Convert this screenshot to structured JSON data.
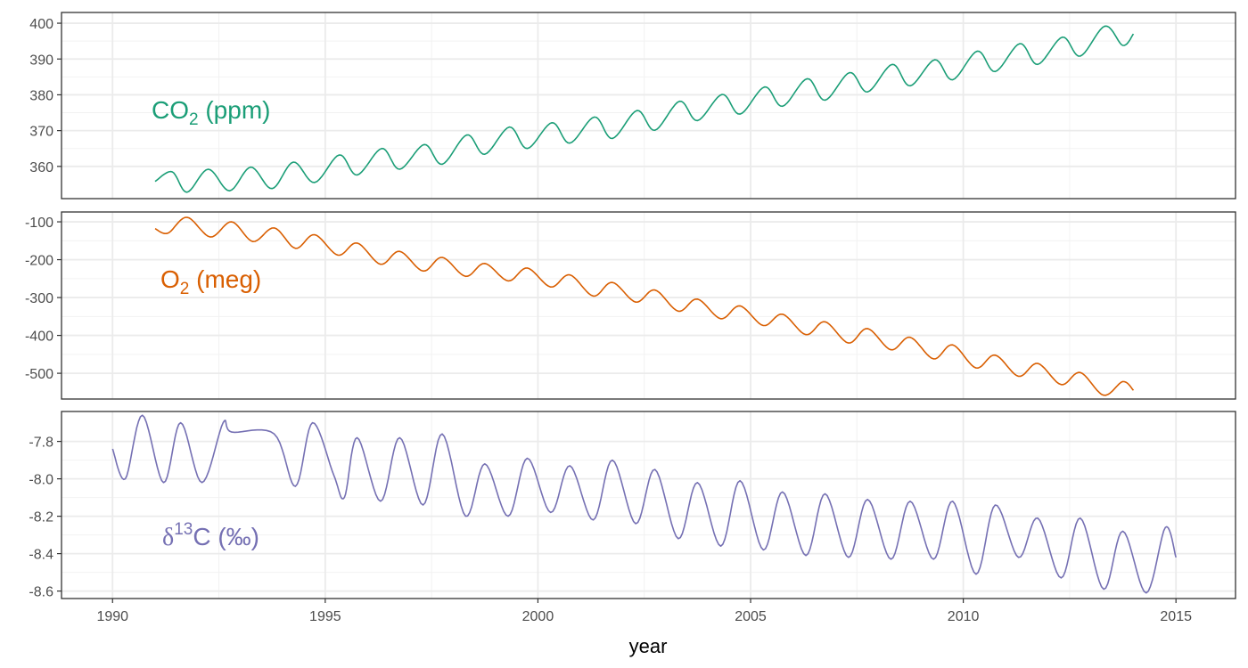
{
  "chart_data": {
    "type": "line",
    "xlabel": "year",
    "x_ticks": [
      1990,
      1995,
      2000,
      2005,
      2010,
      2015
    ],
    "x_tick_labels": [
      "1990",
      "1995",
      "2000",
      "2005",
      "2010",
      "2015"
    ],
    "xlim": [
      1988.8,
      2016.4
    ],
    "grid": true,
    "panels": [
      {
        "id": "co2",
        "label": {
          "base": "CO",
          "sub": "2",
          "unit": " (ppm)"
        },
        "color": "#1b9e77",
        "ylim": [
          351.0,
          403.0
        ],
        "y_ticks": [
          360,
          370,
          380,
          390,
          400
        ],
        "y_tick_labels": [
          "360",
          "370",
          "380",
          "390",
          "400"
        ],
        "x_start": 1991.0,
        "x_end": 2014.0,
        "series": {
          "x": [
            1991.0,
            1991.4,
            1991.75,
            1992.25,
            1992.75,
            1993.25,
            1993.75,
            1994.25,
            1994.75,
            1995.33,
            1995.75,
            1996.33,
            1996.75,
            1997.33,
            1997.75,
            1998.33,
            1998.75,
            1999.33,
            1999.75,
            2000.33,
            2000.75,
            2001.33,
            2001.75,
            2002.33,
            2002.75,
            2003.33,
            2003.75,
            2004.33,
            2004.75,
            2005.33,
            2005.75,
            2006.33,
            2006.75,
            2007.33,
            2007.75,
            2008.33,
            2008.75,
            2009.33,
            2009.75,
            2010.33,
            2010.75,
            2011.33,
            2011.75,
            2012.33,
            2012.75,
            2013.33,
            2013.75,
            2014.0
          ],
          "y": [
            355.8,
            358.5,
            352.8,
            359.2,
            353.2,
            359.8,
            353.8,
            361.2,
            355.5,
            363.2,
            357.6,
            365.0,
            359.2,
            366.1,
            360.6,
            368.8,
            363.4,
            371.0,
            365.0,
            372.2,
            366.5,
            373.8,
            367.8,
            375.6,
            370.1,
            378.2,
            372.8,
            380.1,
            374.6,
            382.2,
            376.8,
            384.5,
            378.5,
            386.2,
            380.8,
            388.5,
            382.5,
            389.8,
            384.2,
            392.2,
            386.5,
            394.3,
            388.5,
            396.1,
            390.8,
            399.2,
            393.8,
            397.0
          ]
        }
      },
      {
        "id": "o2",
        "label": {
          "base": "O",
          "sub": "2",
          "unit": " (meg)"
        },
        "color": "#d95f02",
        "ylim": [
          -568,
          -74
        ],
        "y_ticks": [
          -500,
          -400,
          -300,
          -200,
          -100
        ],
        "y_tick_labels": [
          "-500",
          "-400",
          "-300",
          "-200",
          "-100"
        ],
        "x_start": 1991.0,
        "x_end": 2014.0,
        "series": {
          "x": [
            1991.0,
            1991.3,
            1991.75,
            1992.3,
            1992.8,
            1993.3,
            1993.8,
            1994.3,
            1994.75,
            1995.3,
            1995.75,
            1996.3,
            1996.75,
            1997.3,
            1997.75,
            1998.3,
            1998.75,
            1999.3,
            1999.75,
            2000.3,
            2000.75,
            2001.3,
            2001.75,
            2002.3,
            2002.75,
            2003.3,
            2003.75,
            2004.3,
            2004.75,
            2005.3,
            2005.75,
            2006.3,
            2006.75,
            2007.3,
            2007.75,
            2008.3,
            2008.75,
            2009.3,
            2009.75,
            2010.3,
            2010.75,
            2011.3,
            2011.75,
            2012.3,
            2012.75,
            2013.3,
            2013.75,
            2014.0
          ],
          "y": [
            -118,
            -130,
            -88,
            -140,
            -100,
            -152,
            -116,
            -170,
            -134,
            -188,
            -156,
            -212,
            -178,
            -230,
            -194,
            -244,
            -210,
            -256,
            -222,
            -272,
            -240,
            -296,
            -260,
            -312,
            -280,
            -336,
            -304,
            -356,
            -322,
            -374,
            -344,
            -398,
            -364,
            -420,
            -382,
            -438,
            -405,
            -462,
            -425,
            -486,
            -452,
            -508,
            -474,
            -530,
            -498,
            -558,
            -522,
            -545
          ]
        }
      },
      {
        "id": "d13c",
        "label": {
          "base": "δ",
          "sup": "13",
          "unit": "C (‰)"
        },
        "color": "#7570b3",
        "ylim": [
          -8.64,
          -7.64
        ],
        "y_ticks": [
          -8.6,
          -8.4,
          -8.2,
          -8.0,
          -7.8
        ],
        "y_tick_labels": [
          "-8.6",
          "-8.4",
          "-8.2",
          "-8.0",
          "-7.8"
        ],
        "x_start": 1990.0,
        "x_end": 2015.0,
        "series": {
          "x": [
            1990.0,
            1990.3,
            1990.7,
            1991.2,
            1991.6,
            1992.1,
            1992.6,
            1992.8,
            1993.8,
            1994.3,
            1994.7,
            1995.2,
            1995.45,
            1995.75,
            1996.3,
            1996.75,
            1997.3,
            1997.75,
            1998.3,
            1998.75,
            1999.3,
            1999.75,
            2000.3,
            2000.75,
            2001.3,
            2001.75,
            2002.3,
            2002.75,
            2003.3,
            2003.75,
            2004.3,
            2004.75,
            2005.3,
            2005.75,
            2006.3,
            2006.75,
            2007.3,
            2007.75,
            2008.3,
            2008.75,
            2009.3,
            2009.75,
            2010.3,
            2010.75,
            2011.3,
            2011.75,
            2012.3,
            2012.75,
            2013.3,
            2013.75,
            2014.3,
            2014.75,
            2015.0
          ],
          "y": [
            -7.84,
            -8.0,
            -7.66,
            -8.02,
            -7.7,
            -8.02,
            -7.7,
            -7.75,
            -7.76,
            -8.04,
            -7.7,
            -7.98,
            -8.1,
            -7.78,
            -8.12,
            -7.78,
            -8.14,
            -7.76,
            -8.2,
            -7.92,
            -8.2,
            -7.89,
            -8.18,
            -7.93,
            -8.22,
            -7.9,
            -8.24,
            -7.95,
            -8.32,
            -8.02,
            -8.36,
            -8.01,
            -8.38,
            -8.07,
            -8.41,
            -8.08,
            -8.42,
            -8.11,
            -8.43,
            -8.12,
            -8.43,
            -8.12,
            -8.51,
            -8.14,
            -8.42,
            -8.21,
            -8.53,
            -8.21,
            -8.59,
            -8.28,
            -8.61,
            -8.26,
            -8.42
          ]
        }
      }
    ]
  }
}
